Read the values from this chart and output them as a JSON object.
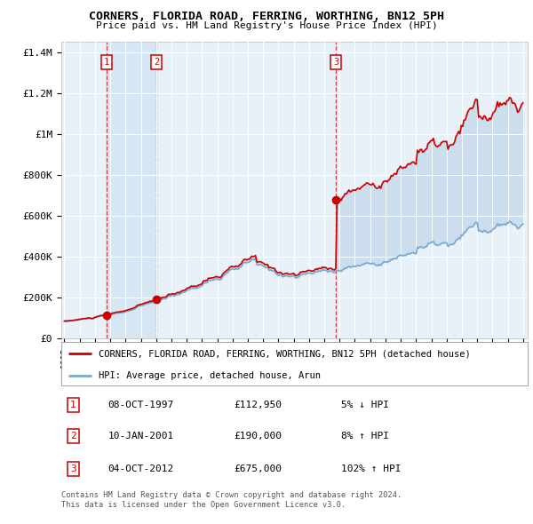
{
  "title": "CORNERS, FLORIDA ROAD, FERRING, WORTHING, BN12 5PH",
  "subtitle": "Price paid vs. HM Land Registry's House Price Index (HPI)",
  "legend_line1": "CORNERS, FLORIDA ROAD, FERRING, WORTHING, BN12 5PH (detached house)",
  "legend_line2": "HPI: Average price, detached house, Arun",
  "sales": [
    {
      "num": 1,
      "date": "08-OCT-1997",
      "price": 112950,
      "pct": "5%",
      "dir": "↓",
      "year": 1997.75
    },
    {
      "num": 2,
      "date": "10-JAN-2001",
      "price": 190000,
      "pct": "8%",
      "dir": "↑",
      "year": 2001.03
    },
    {
      "num": 3,
      "date": "04-OCT-2012",
      "price": 675000,
      "pct": "102%",
      "dir": "↑",
      "year": 2012.75
    }
  ],
  "footer1": "Contains HM Land Registry data © Crown copyright and database right 2024.",
  "footer2": "This data is licensed under the Open Government Licence v3.0.",
  "ylim": [
    0,
    1450000
  ],
  "xlim": [
    1994.8,
    2025.3
  ],
  "plot_bg": "#e8f0f8",
  "grid_color": "#ffffff",
  "red_color": "#cc0000",
  "blue_color": "#7aabcf",
  "shade_color": "#c8ddf0"
}
